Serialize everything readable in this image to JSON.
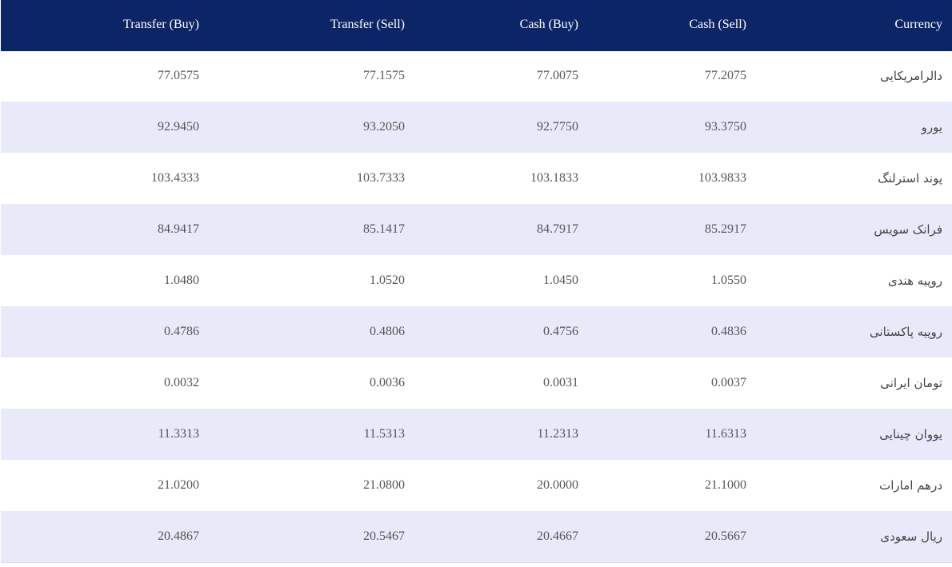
{
  "table": {
    "headers": [
      "Transfer (Buy)",
      "Transfer (Sell)",
      "Cash (Buy)",
      "Cash (Sell)",
      "Currency"
    ],
    "rows": [
      {
        "transfer_buy": "77.0575",
        "transfer_sell": "77.1575",
        "cash_buy": "77.0075",
        "cash_sell": "77.2075",
        "currency": "دالرامریکایی"
      },
      {
        "transfer_buy": "92.9450",
        "transfer_sell": "93.2050",
        "cash_buy": "92.7750",
        "cash_sell": "93.3750",
        "currency": "یورو"
      },
      {
        "transfer_buy": "103.4333",
        "transfer_sell": "103.7333",
        "cash_buy": "103.1833",
        "cash_sell": "103.9833",
        "currency": "پوند استرلنگ"
      },
      {
        "transfer_buy": "84.9417",
        "transfer_sell": "85.1417",
        "cash_buy": "84.7917",
        "cash_sell": "85.2917",
        "currency": "فرانک سویس"
      },
      {
        "transfer_buy": "1.0480",
        "transfer_sell": "1.0520",
        "cash_buy": "1.0450",
        "cash_sell": "1.0550",
        "currency": "روپیه هندی"
      },
      {
        "transfer_buy": "0.4786",
        "transfer_sell": "0.4806",
        "cash_buy": "0.4756",
        "cash_sell": "0.4836",
        "currency": "روپیه پاکستانی"
      },
      {
        "transfer_buy": "0.0032",
        "transfer_sell": "0.0036",
        "cash_buy": "0.0031",
        "cash_sell": "0.0037",
        "currency": "تومان ایرانی"
      },
      {
        "transfer_buy": "11.3313",
        "transfer_sell": "11.5313",
        "cash_buy": "11.2313",
        "cash_sell": "11.6313",
        "currency": "یووان چینایی"
      },
      {
        "transfer_buy": "21.0200",
        "transfer_sell": "21.0800",
        "cash_buy": "20.0000",
        "cash_sell": "21.1000",
        "currency": "درهم امارات"
      },
      {
        "transfer_buy": "20.4867",
        "transfer_sell": "20.5467",
        "cash_buy": "20.4667",
        "cash_sell": "20.5667",
        "currency": "ریال سعودی"
      }
    ]
  },
  "colors": {
    "header_bg": "#0b2566",
    "row_alt_bg": "#e8eafa",
    "text": "#555555"
  }
}
